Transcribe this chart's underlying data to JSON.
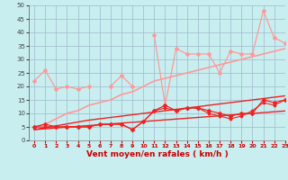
{
  "x": [
    0,
    1,
    2,
    3,
    4,
    5,
    6,
    7,
    8,
    9,
    10,
    11,
    12,
    13,
    14,
    15,
    16,
    17,
    18,
    19,
    20,
    21,
    22,
    23
  ],
  "line_light_scattered": [
    22,
    26,
    19,
    20,
    19,
    20,
    null,
    20,
    24,
    20,
    null,
    39,
    13,
    34,
    32,
    32,
    32,
    25,
    33,
    32,
    32,
    48,
    38,
    36
  ],
  "line_light_slope": [
    5,
    6,
    8,
    10,
    11,
    13,
    14,
    15,
    17,
    18,
    20,
    22,
    23,
    24,
    25,
    26,
    27,
    28,
    29,
    30,
    31,
    32,
    33,
    34
  ],
  "line_dark_scattered1": [
    5,
    6,
    5,
    5,
    5,
    5,
    6,
    6,
    6,
    4,
    7,
    11,
    13,
    11,
    12,
    12,
    11,
    10,
    9,
    10,
    10,
    15,
    14,
    15
  ],
  "line_dark_scattered2": [
    5,
    5,
    5,
    5,
    5,
    5,
    6,
    6,
    6,
    4,
    7,
    11,
    12,
    11,
    12,
    12,
    10,
    9,
    8,
    9,
    11,
    14,
    13,
    15
  ],
  "line_dark_slope1": [
    4,
    4.7,
    5.4,
    6.1,
    6.8,
    7.5,
    8.0,
    8.5,
    9.0,
    9.5,
    10.0,
    10.5,
    11.0,
    11.5,
    12.0,
    12.5,
    13.0,
    13.5,
    14.0,
    14.5,
    15.0,
    15.5,
    16.0,
    16.5
  ],
  "line_dark_slope2": [
    4,
    4.3,
    4.6,
    4.9,
    5.2,
    5.5,
    5.8,
    6.1,
    6.4,
    6.7,
    7.0,
    7.3,
    7.6,
    7.9,
    8.2,
    8.5,
    8.8,
    9.1,
    9.4,
    9.7,
    10.0,
    10.3,
    10.6,
    10.9
  ],
  "bg_color": "#c8eef0",
  "grid_color": "#a0b8cc",
  "line_light_color": "#ff9999",
  "line_dark_color": "#ee2222",
  "xlabel": "Vent moyen/en rafales ( km/h )",
  "ylim": [
    0,
    50
  ],
  "xlim": [
    -0.5,
    23
  ],
  "yticks": [
    0,
    5,
    10,
    15,
    20,
    25,
    30,
    35,
    40,
    45,
    50
  ],
  "xticks": [
    0,
    1,
    2,
    3,
    4,
    5,
    6,
    7,
    8,
    9,
    10,
    11,
    12,
    13,
    14,
    15,
    16,
    17,
    18,
    19,
    20,
    21,
    22,
    23
  ]
}
